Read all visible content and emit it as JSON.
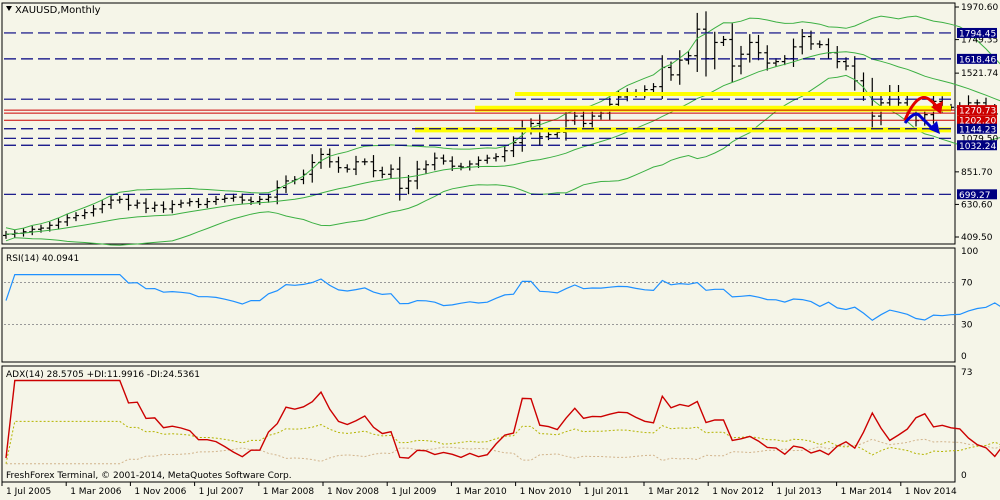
{
  "chart_data": [
    {
      "type": "candlestick",
      "title": "XAUUSD,Monthly",
      "ylim": [
        409.5,
        1970.6
      ],
      "y_ticks": [
        "1970.60",
        "1749.35",
        "1521.74",
        "851.70",
        "630.60",
        "409.50"
      ],
      "x_ticks": [
        "1 Jul 2005",
        "1 Mar 2006",
        "1 Nov 2006",
        "1 Jul 2007",
        "1 Mar 2008",
        "1 Nov 2008",
        "1 Jul 2009",
        "1 Mar 2010",
        "1 Nov 2010",
        "1 Jul 2011",
        "1 Mar 2012",
        "1 Nov 2012",
        "1 Jul 2013",
        "1 Mar 2014",
        "1 Nov 2014"
      ],
      "close": [
        428,
        435,
        445,
        462,
        470,
        489,
        512,
        540,
        555,
        575,
        600,
        630,
        660,
        665,
        625,
        640,
        604,
        625,
        600,
        630,
        640,
        650,
        630,
        650,
        665,
        672,
        680,
        660,
        650,
        665,
        680,
        745,
        790,
        800,
        835,
        915,
        970,
        920,
        880,
        870,
        920,
        920,
        860,
        835,
        870,
        740,
        790,
        870,
        900,
        945,
        925,
        890,
        885,
        905,
        930,
        945,
        955,
        995,
        1050,
        1140,
        1180,
        1090,
        1105,
        1120,
        1200,
        1230,
        1180,
        1230,
        1250,
        1310,
        1360,
        1390,
        1380,
        1410,
        1430,
        1560,
        1510,
        1610,
        1640,
        1820,
        1620,
        1730,
        1750,
        1570,
        1650,
        1730,
        1660,
        1590,
        1600,
        1620,
        1700,
        1770,
        1720,
        1715,
        1660,
        1600,
        1570,
        1470,
        1390,
        1230,
        1320,
        1390,
        1320,
        1250,
        1200,
        1240,
        1330,
        1290,
        1290,
        1250,
        1320,
        1320,
        1280,
        1245,
        1210,
        1160,
        1180
      ],
      "series": [
        {
          "name": "RSI(14)",
          "last": 40.0941,
          "ylim": [
            0,
            100
          ],
          "y_ticks": [
            "100",
            "70",
            "30",
            "0"
          ]
        },
        {
          "name": "ADX(14)",
          "value": 28.5705,
          "ylim": [
            0,
            73
          ],
          "y_ticks": [
            "73",
            "0"
          ]
        },
        {
          "name": "+DI",
          "value": 11.9916
        },
        {
          "name": "-DI",
          "value": 24.5361
        }
      ],
      "annotations": [
        "Bollinger Bands",
        "horizontal levels",
        "yellow support/resistance zones",
        "forecast arrows"
      ]
    }
  ],
  "levels": [
    {
      "value": "1794.45",
      "kind": "blue-dash",
      "bg": "#000080"
    },
    {
      "value": "1618.46",
      "kind": "blue-dash",
      "bg": "#000080"
    },
    {
      "value": "1270.73",
      "kind": "red",
      "bg": "#cc0000"
    },
    {
      "value": "1202.20",
      "kind": "red",
      "bg": "#cc0000"
    },
    {
      "value": "1144.23",
      "kind": "blue-dash",
      "bg": "#000080"
    },
    {
      "value": "1032.24",
      "kind": "blue-dash",
      "bg": "#000080"
    },
    {
      "value": "699.27",
      "kind": "blue-dash",
      "bg": "#000080"
    }
  ],
  "extra_blue_levels": [
    1345,
    1079.5
  ],
  "obscured_tick": "1079.50",
  "footer": "FreshForex Terminal, © 2001-2014, MetaQuotes Software Corp.",
  "colors": {
    "background": "#f5f5e8",
    "candles": "#000000",
    "bollinger": "#3cb043",
    "rsi": "#1e90ff",
    "adx": "#cc0000",
    "plus_di": "#b4b400",
    "minus_di": "#d2b48c",
    "levels": "#000080",
    "zones": "#ffff00"
  }
}
